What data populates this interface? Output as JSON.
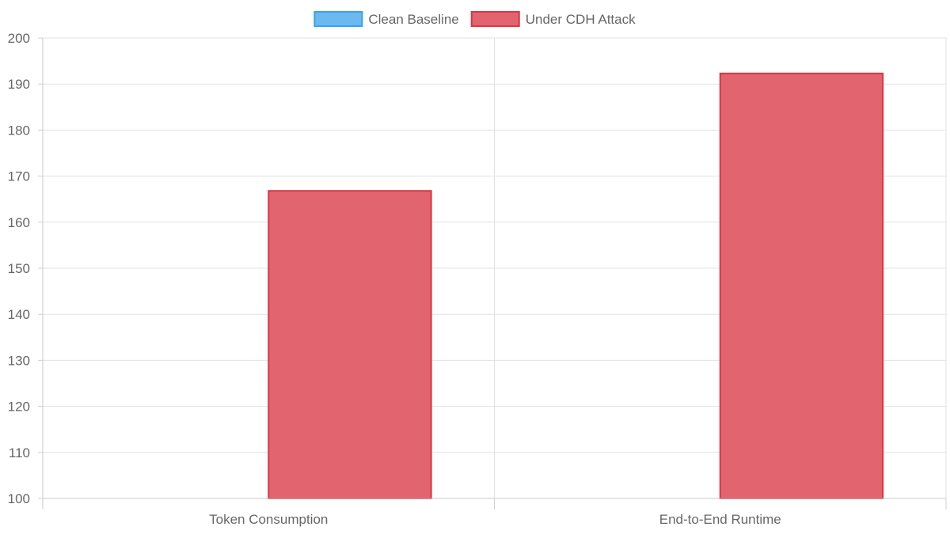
{
  "chart_data": {
    "type": "bar",
    "categories": [
      "Token Consumption",
      "End-to-End Runtime"
    ],
    "series": [
      {
        "name": "Clean Baseline",
        "values": [
          100,
          100
        ],
        "color": "#36A2EB",
        "fill": "#6CB8F0"
      },
      {
        "name": "Under CDH Attack",
        "values": [
          166.8,
          192.3
        ],
        "color": "#DC3545",
        "fill": "#E2646E"
      }
    ],
    "ylim": [
      100,
      200
    ],
    "yticks": [
      100,
      110,
      120,
      130,
      140,
      150,
      160,
      170,
      180,
      190,
      200
    ],
    "grid": true,
    "legend": "top-center"
  }
}
